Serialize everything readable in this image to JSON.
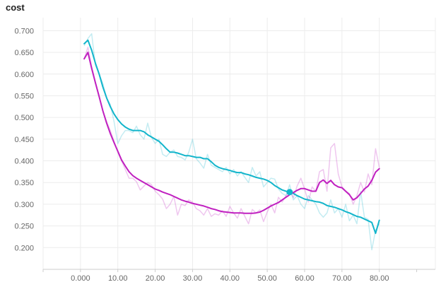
{
  "chart_data": {
    "type": "line",
    "title": "cost",
    "xlabel": "",
    "ylabel": "",
    "xlim": [
      -10,
      95
    ],
    "ylim": [
      0.15,
      0.73
    ],
    "x_ticks": [
      0,
      10,
      20,
      30,
      40,
      50,
      60,
      70,
      80
    ],
    "x_tick_labels": [
      "0.000",
      "10.00",
      "20.00",
      "30.00",
      "40.00",
      "50.00",
      "60.00",
      "70.00",
      "80.00"
    ],
    "y_ticks": [
      0.2,
      0.25,
      0.3,
      0.35,
      0.4,
      0.45,
      0.5,
      0.55,
      0.6,
      0.65,
      0.7
    ],
    "y_tick_labels": [
      "0.200",
      "0.250",
      "0.300",
      "0.350",
      "0.400",
      "0.450",
      "0.500",
      "0.550",
      "0.600",
      "0.650",
      "0.700"
    ],
    "grid": true,
    "x": [
      1,
      2,
      3,
      4,
      5,
      6,
      7,
      8,
      9,
      10,
      11,
      12,
      13,
      14,
      15,
      16,
      17,
      18,
      19,
      20,
      21,
      22,
      23,
      24,
      25,
      26,
      27,
      28,
      29,
      30,
      31,
      32,
      33,
      34,
      35,
      36,
      37,
      38,
      39,
      40,
      41,
      42,
      43,
      44,
      45,
      46,
      47,
      48,
      49,
      50,
      51,
      52,
      53,
      54,
      55,
      56,
      57,
      58,
      59,
      60,
      61,
      62,
      63,
      64,
      65,
      66,
      67,
      68,
      69,
      70,
      71,
      72,
      73,
      74,
      75,
      76,
      77,
      78,
      79,
      80
    ],
    "series": [
      {
        "color": "#12b5cb",
        "values": [
          0.67,
          0.678,
          0.655,
          0.625,
          0.6,
          0.57,
          0.545,
          0.525,
          0.508,
          0.495,
          0.485,
          0.478,
          0.473,
          0.47,
          0.47,
          0.47,
          0.467,
          0.46,
          0.455,
          0.45,
          0.445,
          0.437,
          0.428,
          0.42,
          0.42,
          0.418,
          0.415,
          0.412,
          0.412,
          0.41,
          0.408,
          0.408,
          0.405,
          0.405,
          0.398,
          0.39,
          0.385,
          0.382,
          0.38,
          0.378,
          0.375,
          0.373,
          0.373,
          0.37,
          0.368,
          0.365,
          0.362,
          0.36,
          0.358,
          0.355,
          0.35,
          0.343,
          0.338,
          0.333,
          0.33,
          0.328,
          0.325,
          0.32,
          0.316,
          0.312,
          0.31,
          0.308,
          0.306,
          0.305,
          0.302,
          0.297,
          0.295,
          0.293,
          0.29,
          0.287,
          0.283,
          0.28,
          0.276,
          0.272,
          0.27,
          0.266,
          0.262,
          0.258,
          0.233,
          0.263
        ],
        "raw_values": [
          0.665,
          0.682,
          0.693,
          0.62,
          0.6,
          0.578,
          0.545,
          0.53,
          0.49,
          0.44,
          0.458,
          0.47,
          0.47,
          0.465,
          0.48,
          0.46,
          0.45,
          0.487,
          0.454,
          0.44,
          0.45,
          0.415,
          0.41,
          0.42,
          0.425,
          0.41,
          0.408,
          0.402,
          0.42,
          0.45,
          0.405,
          0.395,
          0.383,
          0.415,
          0.39,
          0.385,
          0.38,
          0.375,
          0.385,
          0.37,
          0.38,
          0.365,
          0.375,
          0.362,
          0.35,
          0.385,
          0.365,
          0.375,
          0.34,
          0.35,
          0.36,
          0.358,
          0.335,
          0.325,
          0.32,
          0.345,
          0.31,
          0.32,
          0.3,
          0.29,
          0.32,
          0.31,
          0.3,
          0.28,
          0.27,
          0.28,
          0.31,
          0.28,
          0.29,
          0.27,
          0.3,
          0.262,
          0.275,
          0.255,
          0.33,
          0.27,
          0.265,
          0.195,
          0.24,
          0.255
        ]
      },
      {
        "color": "#c020c0",
        "values": [
          0.635,
          0.65,
          0.613,
          0.58,
          0.548,
          0.515,
          0.487,
          0.463,
          0.442,
          0.422,
          0.402,
          0.388,
          0.375,
          0.366,
          0.36,
          0.355,
          0.35,
          0.345,
          0.34,
          0.335,
          0.332,
          0.328,
          0.325,
          0.322,
          0.318,
          0.314,
          0.31,
          0.307,
          0.305,
          0.302,
          0.3,
          0.298,
          0.296,
          0.293,
          0.29,
          0.288,
          0.285,
          0.283,
          0.282,
          0.281,
          0.28,
          0.28,
          0.28,
          0.279,
          0.279,
          0.279,
          0.28,
          0.282,
          0.286,
          0.291,
          0.296,
          0.3,
          0.304,
          0.31,
          0.316,
          0.322,
          0.327,
          0.332,
          0.336,
          0.336,
          0.333,
          0.33,
          0.33,
          0.35,
          0.356,
          0.348,
          0.355,
          0.345,
          0.34,
          0.338,
          0.33,
          0.322,
          0.31,
          0.315,
          0.325,
          0.335,
          0.342,
          0.355,
          0.374,
          0.382
        ],
        "raw_values": [
          0.635,
          0.662,
          0.618,
          0.582,
          0.55,
          0.515,
          0.49,
          0.47,
          0.445,
          0.42,
          0.4,
          0.38,
          0.36,
          0.36,
          0.352,
          0.333,
          0.342,
          0.35,
          0.345,
          0.33,
          0.322,
          0.312,
          0.29,
          0.3,
          0.318,
          0.275,
          0.3,
          0.297,
          0.31,
          0.305,
          0.29,
          0.285,
          0.275,
          0.29,
          0.272,
          0.278,
          0.275,
          0.285,
          0.272,
          0.295,
          0.28,
          0.268,
          0.29,
          0.272,
          0.255,
          0.288,
          0.28,
          0.287,
          0.26,
          0.282,
          0.3,
          0.28,
          0.316,
          0.305,
          0.32,
          0.33,
          0.315,
          0.342,
          0.36,
          0.335,
          0.305,
          0.34,
          0.33,
          0.375,
          0.38,
          0.33,
          0.43,
          0.44,
          0.37,
          0.34,
          0.33,
          0.325,
          0.3,
          0.32,
          0.35,
          0.328,
          0.37,
          0.345,
          0.428,
          0.385
        ]
      }
    ],
    "marker": {
      "x": 56,
      "y": 0.328,
      "color": "#12b5cb"
    }
  }
}
